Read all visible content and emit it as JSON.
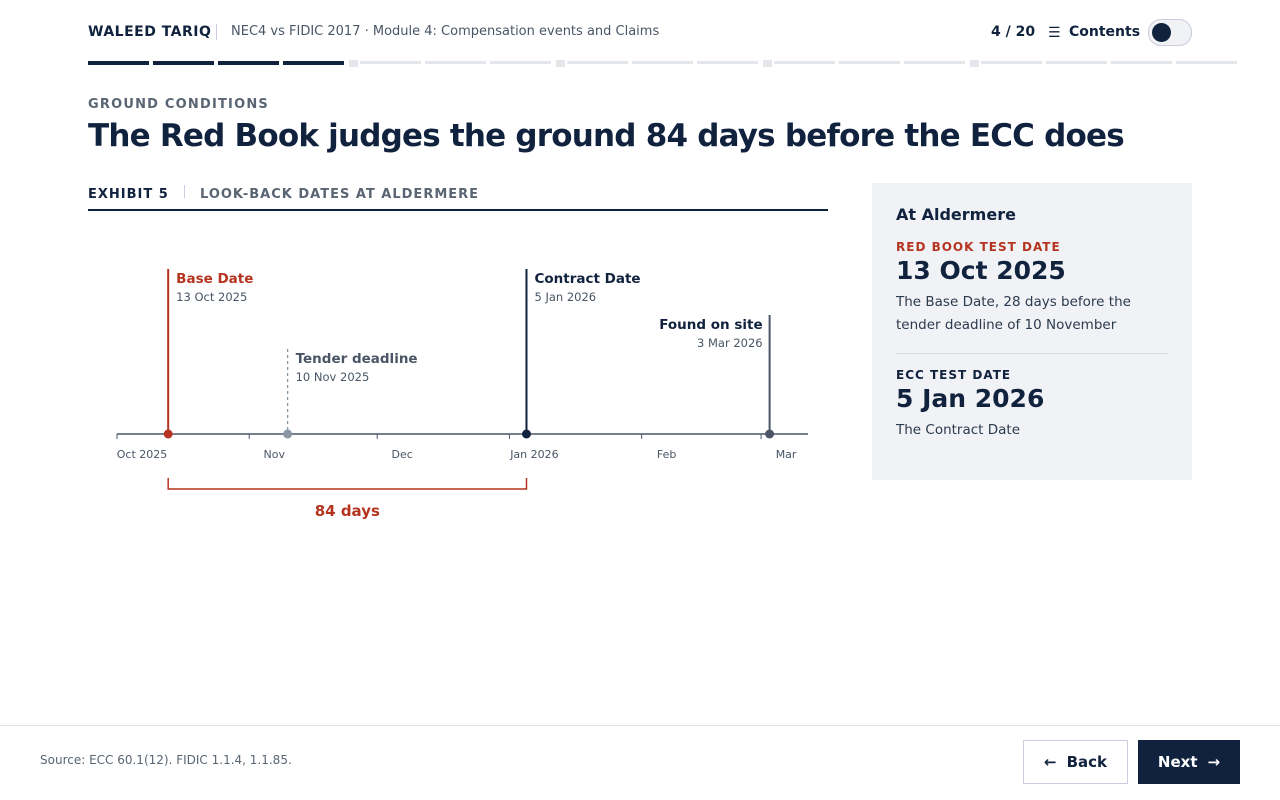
{
  "header": {
    "brand": "WALEED TARIQ",
    "course": "NEC4 vs FIDIC 2017 · Module 4: Compensation events and Claims",
    "progress": "4 / 20",
    "contents": "Contents"
  },
  "section": "GROUND CONDITIONS",
  "title": "The Red Book judges the ground 84 days before the ECC does",
  "exhibit": {
    "number": "EXHIBIT 5",
    "caption": "LOOK-BACK DATES AT ALDERMERE"
  },
  "timeline": {
    "xlim": [
      "2025-10-01",
      "2026-03-12"
    ],
    "xticks": [
      {
        "value": "2025-10-01",
        "label": "Oct 2025"
      },
      {
        "value": "2025-11-01",
        "label": "Nov"
      },
      {
        "value": "2025-12-01",
        "label": "Dec"
      },
      {
        "value": "2026-01-01",
        "label": "Jan 2026"
      },
      {
        "value": "2026-02-01",
        "label": "Feb"
      },
      {
        "value": "2026-03-01",
        "label": "Mar"
      }
    ],
    "events": [
      {
        "label": "Base Date",
        "date": "2025-10-13",
        "date_label": "13 Oct 2025",
        "color": "#b5341f"
      },
      {
        "label": "Tender deadline",
        "date": "2025-11-10",
        "date_label": "10 Nov 2025",
        "color": "#8a96a3"
      },
      {
        "label": "Contract Date",
        "date": "2026-01-05",
        "date_label": "5 Jan 2026",
        "color": "#10223d"
      },
      {
        "label": "Found on site",
        "date": "2026-03-03",
        "date_label": "3 Mar 2026",
        "color": "#4a5666"
      }
    ],
    "span": {
      "label": "84 days",
      "color": "#b5341f"
    }
  },
  "panel": {
    "title": "At Aldermere",
    "items": [
      {
        "kicker": "RED BOOK TEST DATE",
        "date": "13 Oct 2025",
        "note": "The Base Date, 28 days before the tender deadline of 10 November"
      },
      {
        "kicker": "ECC TEST DATE",
        "date": "5 Jan 2026",
        "note": "The Contract Date"
      }
    ]
  },
  "footer": {
    "source": "Source: ECC 60.1(12). FIDIC 1.1.4, 1.1.85.",
    "back": "Back",
    "next": "Next"
  }
}
